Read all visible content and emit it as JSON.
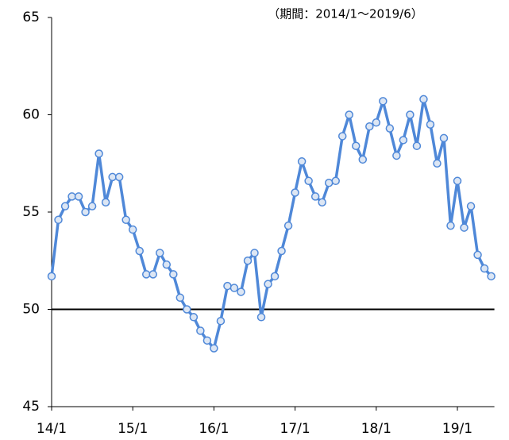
{
  "chart_data": {
    "type": "line",
    "annotation": "（期間：2014/1～2019/6）",
    "categories": [
      "14/1",
      null,
      null,
      null,
      null,
      null,
      null,
      null,
      null,
      null,
      null,
      null,
      "15/1",
      null,
      null,
      null,
      null,
      null,
      null,
      null,
      null,
      null,
      null,
      null,
      "16/1",
      null,
      null,
      null,
      null,
      null,
      null,
      null,
      null,
      null,
      null,
      null,
      "17/1",
      null,
      null,
      null,
      null,
      null,
      null,
      null,
      null,
      null,
      null,
      null,
      "18/1",
      null,
      null,
      null,
      null,
      null,
      null,
      null,
      null,
      null,
      null,
      null,
      "19/1",
      null,
      null,
      null,
      null,
      null
    ],
    "values": [
      51.7,
      54.6,
      55.3,
      55.8,
      55.8,
      55.0,
      55.3,
      58.0,
      55.5,
      56.8,
      56.8,
      54.6,
      54.1,
      53.0,
      51.8,
      51.8,
      52.9,
      52.3,
      51.8,
      50.6,
      50.0,
      49.6,
      48.9,
      48.4,
      48.0,
      49.4,
      51.2,
      51.1,
      50.9,
      52.5,
      52.9,
      49.6,
      51.3,
      51.7,
      53.0,
      54.3,
      56.0,
      57.6,
      56.6,
      55.8,
      55.5,
      56.5,
      56.6,
      58.9,
      60.0,
      58.4,
      57.7,
      59.4,
      59.6,
      60.7,
      59.3,
      57.9,
      58.7,
      60.0,
      58.4,
      60.8,
      59.5,
      57.5,
      58.8,
      54.3,
      56.6,
      54.2,
      55.3,
      52.8,
      52.1,
      51.7
    ],
    "color": "#4f88d8",
    "marker_fill": "#dce6f4",
    "reference_line": 50,
    "ylim": [
      45,
      65
    ],
    "yticks": [
      45,
      50,
      55,
      60,
      65
    ],
    "grid": false
  }
}
